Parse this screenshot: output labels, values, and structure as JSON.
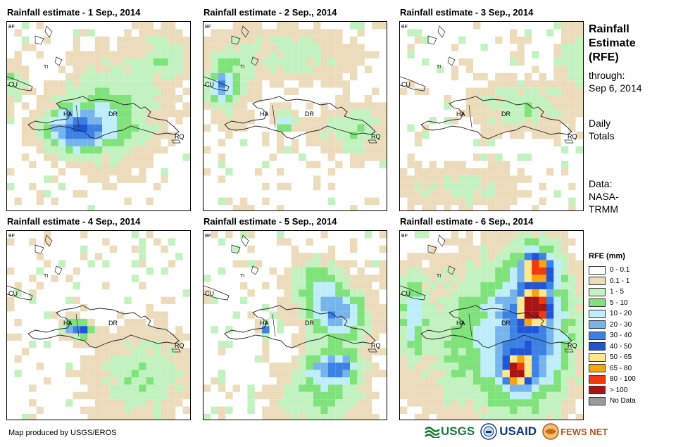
{
  "panels": [
    {
      "title": "Rainfall estimate - 1 Sep., 2014",
      "day": 1
    },
    {
      "title": "Rainfall estimate - 2 Sep., 2014",
      "day": 2
    },
    {
      "title": "Rainfall estimate - 3 Sep., 2014",
      "day": 3
    },
    {
      "title": "Rainfall estimate - 4 Sep., 2014",
      "day": 4
    },
    {
      "title": "Rainfall estimate - 5 Sep., 2014",
      "day": 5
    },
    {
      "title": "Rainfall estimate - 6 Sep., 2014",
      "day": 6
    }
  ],
  "map_labels": {
    "bf": "BF",
    "cu": "CU",
    "ti": "TI",
    "ha": "HA",
    "dr": "DR",
    "rq": "RQ"
  },
  "side": {
    "title_line1": "Rainfall",
    "title_line2": "Estimate",
    "title_line3": "(RFE)",
    "through": "through:",
    "date": "Sep 6, 2014",
    "daily1": "Daily",
    "daily2": "Totals",
    "data1": "Data:",
    "data2": "NASA-",
    "data3": "TRMM"
  },
  "legend": {
    "title": "RFE (mm)",
    "items": [
      {
        "label": "0 - 0.1",
        "color": "#ffffff"
      },
      {
        "label": "0.1 - 1",
        "color": "#ecdcbc"
      },
      {
        "label": "1 - 5",
        "color": "#c2f2bf"
      },
      {
        "label": "5 - 10",
        "color": "#7fe27b"
      },
      {
        "label": "10 - 20",
        "color": "#bfeefb"
      },
      {
        "label": "20 - 30",
        "color": "#76b4ee"
      },
      {
        "label": "30 - 40",
        "color": "#3c82e4"
      },
      {
        "label": "40 - 50",
        "color": "#1f56d8"
      },
      {
        "label": "50 - 65",
        "color": "#fde98c"
      },
      {
        "label": "65 - 80",
        "color": "#f8a40c"
      },
      {
        "label": "80 - 100",
        "color": "#f03a0c"
      },
      {
        "label": "> 100",
        "color": "#a81414"
      },
      {
        "label": "No Data",
        "color": "#9a9a9a"
      }
    ]
  },
  "credit": "Map produced by USGS/EROS",
  "logos": {
    "usgs": "USGS",
    "usaid": "USAID",
    "fews": "FEWS NET"
  }
}
